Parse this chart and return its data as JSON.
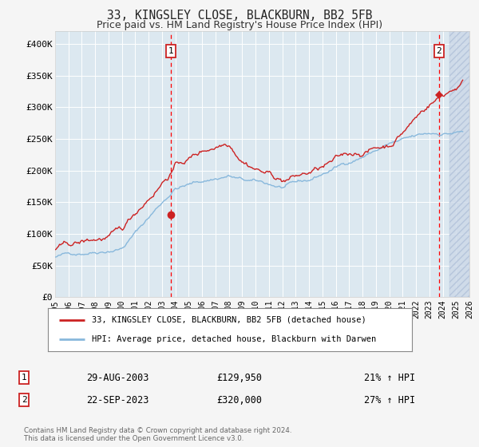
{
  "title": "33, KINGSLEY CLOSE, BLACKBURN, BB2 5FB",
  "subtitle": "Price paid vs. HM Land Registry's House Price Index (HPI)",
  "title_fontsize": 10.5,
  "subtitle_fontsize": 9,
  "bg_color": "#dce8f0",
  "fig_bg_color": "#f5f5f5",
  "grid_color": "#ffffff",
  "hpi_line_color": "#88b8dc",
  "price_line_color": "#cc2222",
  "marker_color": "#cc2222",
  "sale1_date_num": 2003.65,
  "sale1_price": 129950,
  "sale1_label": "29-AUG-2003",
  "sale1_price_str": "£129,950",
  "sale1_hpi_str": "21% ↑ HPI",
  "sale2_date_num": 2023.72,
  "sale2_price": 320000,
  "sale2_label": "22-SEP-2023",
  "sale2_price_str": "£320,000",
  "sale2_hpi_str": "27% ↑ HPI",
  "xmin": 1995,
  "xmax": 2026,
  "ymin": 0,
  "ymax": 420000,
  "yticks": [
    0,
    50000,
    100000,
    150000,
    200000,
    250000,
    300000,
    350000,
    400000
  ],
  "xticks": [
    1995,
    1996,
    1997,
    1998,
    1999,
    2000,
    2001,
    2002,
    2003,
    2004,
    2005,
    2006,
    2007,
    2008,
    2009,
    2010,
    2011,
    2012,
    2013,
    2014,
    2015,
    2016,
    2017,
    2018,
    2019,
    2020,
    2021,
    2022,
    2023,
    2024,
    2025,
    2026
  ],
  "legend_label1": "33, KINGSLEY CLOSE, BLACKBURN, BB2 5FB (detached house)",
  "legend_label2": "HPI: Average price, detached house, Blackburn with Darwen",
  "footnote": "Contains HM Land Registry data © Crown copyright and database right 2024.\nThis data is licensed under the Open Government Licence v3.0.",
  "hatch_start": 2024.5
}
